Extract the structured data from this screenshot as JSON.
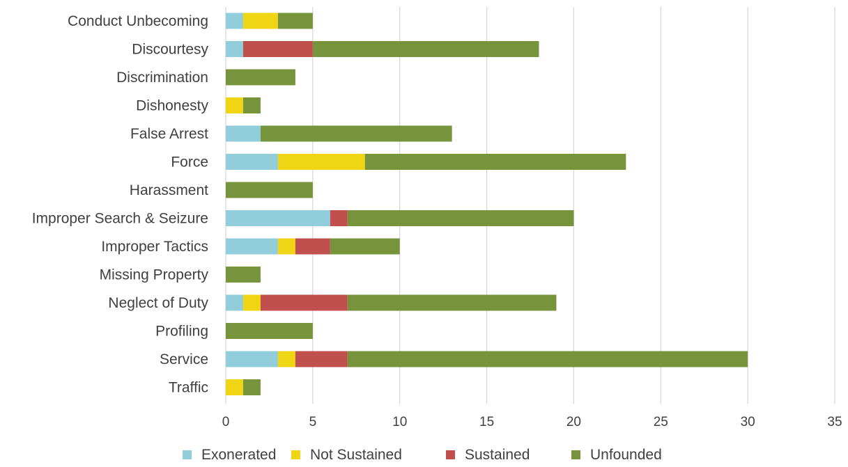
{
  "chart_data": {
    "type": "bar",
    "orientation": "horizontal",
    "stacked": true,
    "title": "",
    "xlabel": "",
    "ylabel": "",
    "categories": [
      "Conduct Unbecoming",
      "Discourtesy",
      "Discrimination",
      "Dishonesty",
      "False Arrest",
      "Force",
      "Harassment",
      "Improper Search & Seizure",
      "Improper Tactics",
      "Missing Property",
      "Neglect of Duty",
      "Profiling",
      "Service",
      "Traffic"
    ],
    "series": [
      {
        "name": "Exonerated",
        "color": "#92cddc",
        "values": [
          1,
          1,
          0,
          0,
          2,
          3,
          0,
          6,
          3,
          0,
          1,
          0,
          3,
          0
        ]
      },
      {
        "name": "Not Sustained",
        "color": "#f0d515",
        "values": [
          2,
          0,
          0,
          1,
          0,
          5,
          0,
          0,
          1,
          0,
          1,
          0,
          1,
          1
        ]
      },
      {
        "name": "Sustained",
        "color": "#c0504d",
        "values": [
          0,
          4,
          0,
          0,
          0,
          0,
          0,
          1,
          2,
          0,
          5,
          0,
          3,
          0
        ]
      },
      {
        "name": "Unfounded",
        "color": "#77933c",
        "values": [
          2,
          13,
          4,
          1,
          11,
          15,
          5,
          13,
          4,
          2,
          12,
          5,
          23,
          1
        ]
      }
    ],
    "xlim": [
      0,
      35
    ],
    "xticks": [
      0,
      5,
      10,
      15,
      20,
      25,
      30,
      35
    ],
    "grid": "vertical",
    "legend_position": "bottom"
  }
}
